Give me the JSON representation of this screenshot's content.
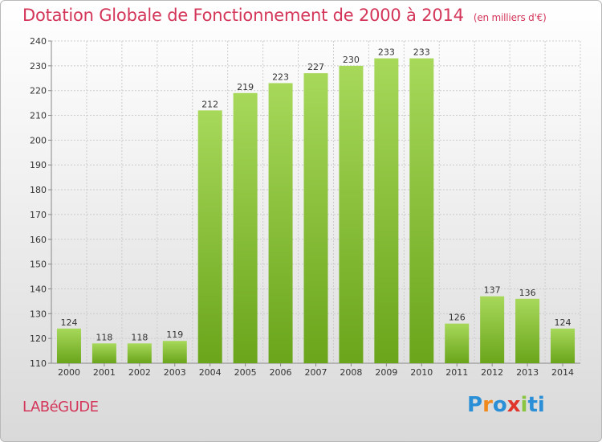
{
  "header": {
    "title": "Dotation Globale de Fonctionnement de 2000 à 2014",
    "unit": "(en milliers d'€)"
  },
  "footer": {
    "commune": "LABéGUDE",
    "logo_letters": [
      "P",
      "r",
      "o",
      "x",
      "i",
      "ti"
    ]
  },
  "colors": {
    "title": "#d4365a",
    "bar_top": "#a7d85a",
    "bar_bottom": "#6aa51b",
    "grid": "#cccccc"
  },
  "chart_data": {
    "type": "bar",
    "title": "Dotation Globale de Fonctionnement de 2000 à 2014",
    "xlabel": "",
    "ylabel": "",
    "categories": [
      "2000",
      "2001",
      "2002",
      "2003",
      "2004",
      "2005",
      "2006",
      "2007",
      "2008",
      "2009",
      "2010",
      "2011",
      "2012",
      "2013",
      "2014"
    ],
    "values": [
      124,
      118,
      118,
      119,
      212,
      219,
      223,
      227,
      230,
      233,
      233,
      126,
      137,
      136,
      124
    ],
    "ylim": [
      110,
      240
    ],
    "yticks": [
      110,
      120,
      130,
      140,
      150,
      160,
      170,
      180,
      190,
      200,
      210,
      220,
      230,
      240
    ],
    "grid": true,
    "legend": "none"
  }
}
